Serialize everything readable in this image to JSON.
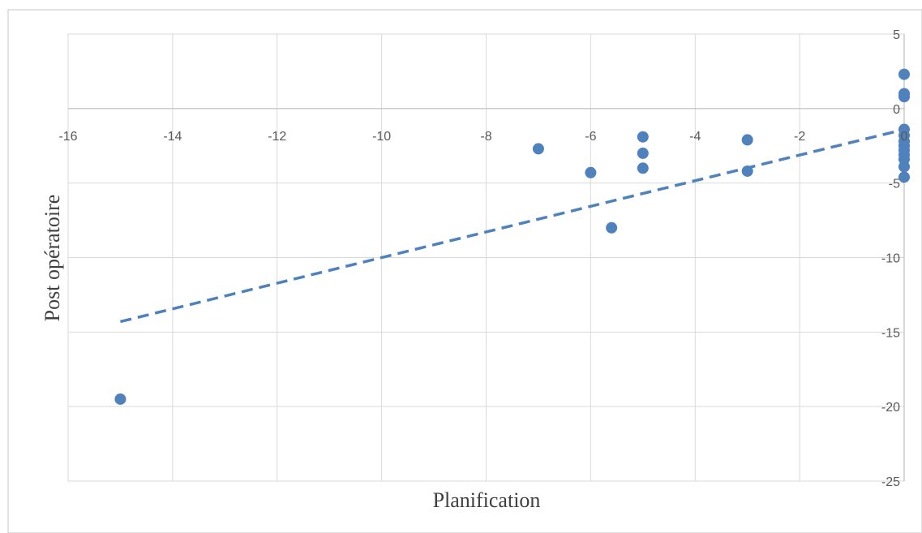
{
  "chart_data": {
    "type": "scatter",
    "title": "",
    "xlabel": "Planification",
    "ylabel": "Post opératoire",
    "xlim": [
      -16,
      0
    ],
    "ylim": [
      -25,
      5
    ],
    "x_ticks": [
      -16,
      -14,
      -12,
      -10,
      -8,
      -6,
      -4,
      -2,
      0
    ],
    "y_ticks": [
      5,
      0,
      -5,
      -10,
      -15,
      -20,
      -25
    ],
    "x_tick_labels": [
      "-16",
      "-14",
      "-12",
      "-10",
      "-8",
      "-6",
      "-4",
      "-2",
      "0"
    ],
    "y_tick_labels": [
      "5",
      "0",
      "-5",
      "-10",
      "-15",
      "-20",
      "-25"
    ],
    "grid": true,
    "legend": "none",
    "series": [
      {
        "marker_color": "#4f81bd",
        "points": [
          [
            -15,
            -19.5
          ],
          [
            -7,
            -2.7
          ],
          [
            -6,
            -4.3
          ],
          [
            -5.6,
            -8.0
          ],
          [
            -5,
            -1.9
          ],
          [
            -5,
            -3.0
          ],
          [
            -5,
            -4.0
          ],
          [
            -3,
            -2.1
          ],
          [
            -3,
            -4.2
          ],
          [
            0,
            2.3
          ],
          [
            0,
            1.0
          ],
          [
            0,
            0.8
          ],
          [
            0,
            -1.4
          ],
          [
            0,
            -1.8
          ],
          [
            0,
            -2.2
          ],
          [
            0,
            -2.5
          ],
          [
            0,
            -2.8
          ],
          [
            0,
            -3.1
          ],
          [
            0,
            -3.4
          ],
          [
            0,
            -3.9
          ],
          [
            0,
            -4.6
          ]
        ]
      }
    ],
    "trendline": {
      "style": "dashed",
      "color": "#4f81bd",
      "x_start": -15,
      "y_start": -14.3,
      "x_end": 0,
      "y_end": -1.4
    }
  }
}
